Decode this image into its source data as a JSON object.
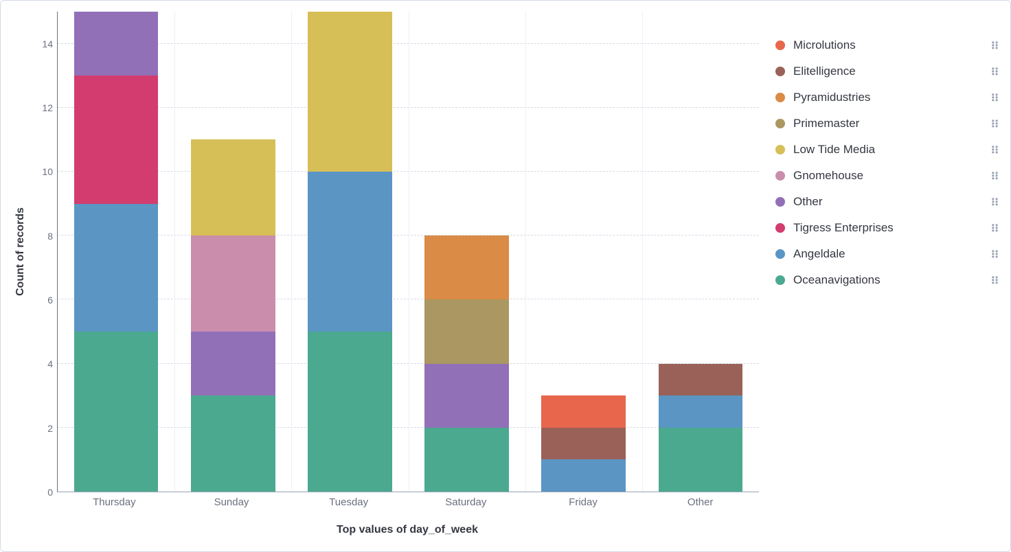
{
  "chart": {
    "type": "stacked-bar",
    "background_color": "#ffffff",
    "border_color": "#d3dae6",
    "grid_color": "#d3dae6",
    "axis_text_color": "#69707d",
    "title_text_color": "#343741",
    "y_axis": {
      "title": "Count of records",
      "min": 0,
      "max": 15,
      "ticks": [
        0,
        2,
        4,
        6,
        8,
        10,
        12,
        14
      ],
      "title_fontsize": 16,
      "tick_fontsize": 14
    },
    "x_axis": {
      "title": "Top values of day_of_week",
      "title_fontsize": 16,
      "tick_fontsize": 15
    },
    "bar_width_ratio": 0.72,
    "series_colors": {
      "Microlutions": "#e7664c",
      "Elitelligence": "#9a6158",
      "Pyramidustries": "#da8b45",
      "Primemaster": "#aa9761",
      "Low Tide Media": "#d6bf57",
      "Gnomehouse": "#ca8eac",
      "Other": "#9170b8",
      "Tigress Enterprises": "#d33c6f",
      "Angeldale": "#5a95c4",
      "Oceanavigations": "#4ba98f"
    },
    "legend_order": [
      "Microlutions",
      "Elitelligence",
      "Pyramidustries",
      "Primemaster",
      "Low Tide Media",
      "Gnomehouse",
      "Other",
      "Tigress Enterprises",
      "Angeldale",
      "Oceanavigations"
    ],
    "stack_order": [
      "Oceanavigations",
      "Angeldale",
      "Tigress Enterprises",
      "Other",
      "Gnomehouse",
      "Low Tide Media",
      "Primemaster",
      "Pyramidustries",
      "Elitelligence",
      "Microlutions"
    ],
    "categories": [
      "Thursday",
      "Sunday",
      "Tuesday",
      "Saturday",
      "Friday",
      "Other"
    ],
    "data": {
      "Thursday": {
        "Oceanavigations": 5,
        "Angeldale": 4,
        "Tigress Enterprises": 4,
        "Other": 2
      },
      "Sunday": {
        "Oceanavigations": 3,
        "Other": 2,
        "Gnomehouse": 3,
        "Low Tide Media": 3
      },
      "Tuesday": {
        "Oceanavigations": 5,
        "Angeldale": 5,
        "Low Tide Media": 5
      },
      "Saturday": {
        "Oceanavigations": 2,
        "Other": 2,
        "Primemaster": 2,
        "Pyramidustries": 2
      },
      "Friday": {
        "Angeldale": 1,
        "Elitelligence": 1,
        "Microlutions": 1
      },
      "Other": {
        "Oceanavigations": 2,
        "Angeldale": 1,
        "Elitelligence": 1
      }
    }
  }
}
